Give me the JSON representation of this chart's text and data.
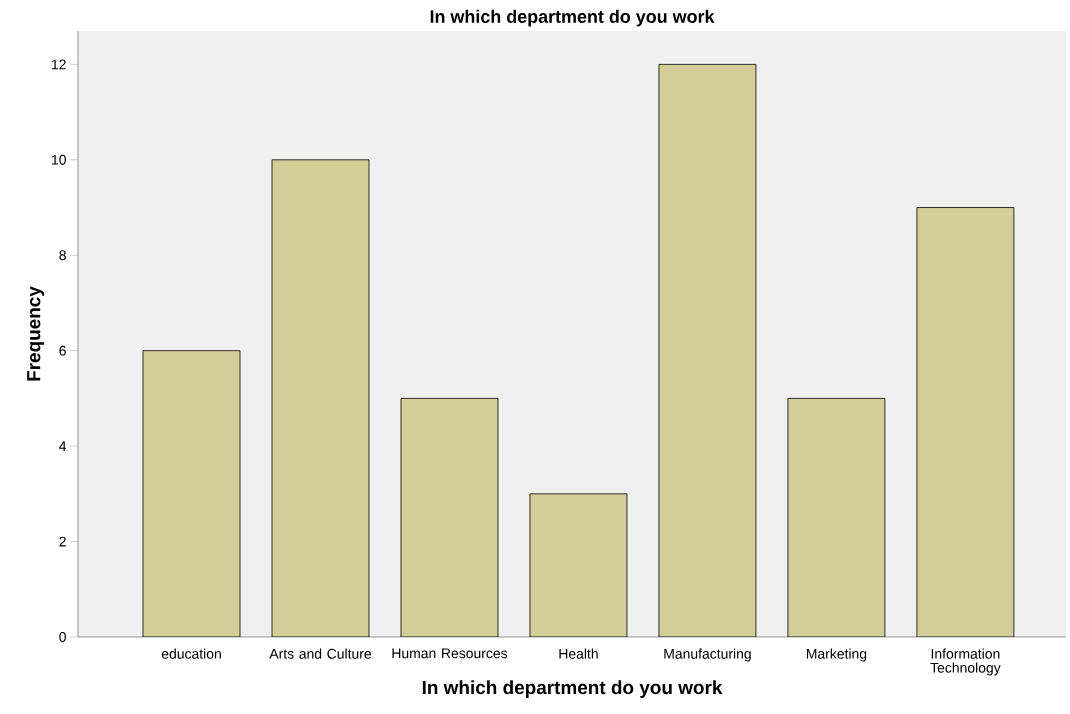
{
  "chart_data": {
    "type": "bar",
    "title": "In which department do you work",
    "xlabel": "In which department do you work",
    "ylabel": "Frequency",
    "categories": [
      "education",
      "Arts and Culture",
      "Human Resources",
      "Health",
      "Manufacturing",
      "Marketing",
      "Information Technology"
    ],
    "values": [
      6,
      10,
      5,
      3,
      12,
      5,
      9
    ],
    "color": "#d3ce98",
    "ylim": [
      0,
      12.7
    ],
    "yticks": [
      0,
      2,
      4,
      6,
      8,
      10,
      12
    ],
    "grid": false
  }
}
